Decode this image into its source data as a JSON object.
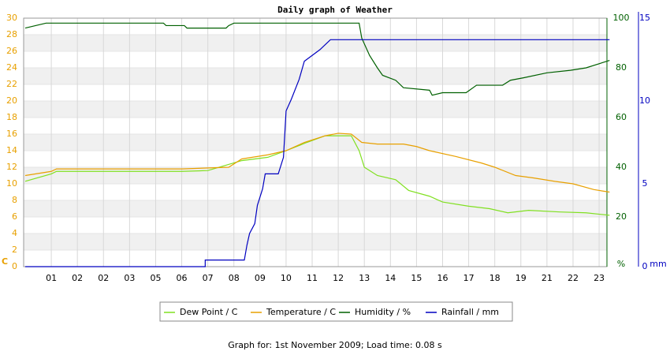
{
  "chart_data": {
    "type": "line",
    "title": "Daily graph of Weather",
    "caption": "Graph for: 1st November 2009; Load time: 0.08 s",
    "ylabel": "C",
    "y2label": "%",
    "y3label": "mm",
    "xlim": [
      -0.06,
      22.3
    ],
    "xticks": [
      {
        "value": 1,
        "label": "01"
      },
      {
        "value": 2,
        "label": "02"
      },
      {
        "value": 3,
        "label": "02"
      },
      {
        "value": 4,
        "label": "03"
      },
      {
        "value": 5,
        "label": "05"
      },
      {
        "value": 6,
        "label": "06"
      },
      {
        "value": 7,
        "label": "07"
      },
      {
        "value": 8,
        "label": "08"
      },
      {
        "value": 9,
        "label": "09"
      },
      {
        "value": 10,
        "label": "10"
      },
      {
        "value": 11,
        "label": "11"
      },
      {
        "value": 12,
        "label": "12"
      },
      {
        "value": 13,
        "label": "13"
      },
      {
        "value": 14,
        "label": "14"
      },
      {
        "value": 15,
        "label": "15"
      },
      {
        "value": 16,
        "label": "16"
      },
      {
        "value": 17,
        "label": "17"
      },
      {
        "value": 18,
        "label": "18"
      },
      {
        "value": 19,
        "label": "19"
      },
      {
        "value": 20,
        "label": "21"
      },
      {
        "value": 21,
        "label": "22"
      },
      {
        "value": 22,
        "label": "23"
      }
    ],
    "ylim": [
      0,
      30
    ],
    "yticks": [
      0,
      2,
      4,
      6,
      8,
      10,
      12,
      14,
      16,
      18,
      20,
      22,
      24,
      26,
      28,
      30
    ],
    "y2lim": [
      0,
      100
    ],
    "y2ticks": [
      20,
      40,
      60,
      80,
      100
    ],
    "y3lim": [
      0,
      15
    ],
    "y3ticks": [
      0,
      5,
      10,
      15
    ],
    "grid": true,
    "series": [
      {
        "name": "Dew Point / C",
        "color": "#80e020",
        "x": [
          0,
          1,
          1.2,
          6,
          7,
          8.3,
          9.3,
          10,
          10.8,
          11.5,
          12.5,
          12.8,
          13.0,
          13.5,
          14.2,
          14.7,
          15.5,
          16,
          17,
          17.8,
          18.5,
          19.3,
          20.5,
          21.5,
          22.4
        ],
        "values": [
          10.3,
          11.2,
          11.5,
          11.5,
          11.6,
          12.8,
          13.2,
          14,
          15,
          15.8,
          15.8,
          14,
          12,
          11,
          10.5,
          9.2,
          8.5,
          7.8,
          7.3,
          7,
          6.5,
          6.8,
          6.6,
          6.5,
          6.2
        ]
      },
      {
        "name": "Temperature / C",
        "color": "#e8a000",
        "x": [
          0,
          1,
          1.2,
          6,
          7.8,
          8.3,
          9.3,
          10,
          10.7,
          11.5,
          12,
          12.5,
          12.9,
          13.5,
          14.5,
          15,
          15.5,
          16.5,
          17.5,
          18,
          18.8,
          19.5,
          20.3,
          21,
          21.8,
          22.4
        ],
        "values": [
          11.0,
          11.5,
          11.8,
          11.8,
          12,
          13,
          13.5,
          14,
          15,
          15.8,
          16.1,
          16,
          15,
          14.8,
          14.8,
          14.5,
          14,
          13.3,
          12.5,
          12,
          11,
          10.7,
          10.3,
          10,
          9.3,
          9.0
        ]
      },
      {
        "name": "Humidity / %",
        "color": "#006000",
        "axis": "y2",
        "x": [
          0,
          0.4,
          0.8,
          5.3,
          5.4,
          6.1,
          6.2,
          7.7,
          7.8,
          8.0,
          12.8,
          12.9,
          13.2,
          13.5,
          13.7,
          14.2,
          14.5,
          15.5,
          15.6,
          16.0,
          16.9,
          17.3,
          18.3,
          18.6,
          19.1,
          20.0,
          20.9,
          21.5,
          22.1,
          22.4
        ],
        "values": [
          96,
          97,
          98,
          98,
          97,
          97,
          96,
          96,
          97,
          98,
          98,
          92,
          85,
          80,
          77,
          75,
          72,
          71,
          69,
          70,
          70,
          73,
          73,
          75,
          76,
          78,
          79,
          80,
          82,
          83
        ]
      },
      {
        "name": "Rainfall / mm",
        "color": "#0000c0",
        "axis": "y3",
        "x": [
          0,
          6.9,
          6.9,
          8.4,
          8.5,
          8.6,
          8.8,
          8.9,
          9.1,
          9.2,
          9.7,
          9.9,
          10.0,
          10.2,
          10.5,
          10.7,
          11.3,
          11.7,
          12.0,
          22.4
        ],
        "values": [
          0,
          0,
          0.4,
          0.4,
          1.3,
          2.0,
          2.6,
          3.7,
          4.7,
          5.6,
          5.6,
          6.6,
          9.4,
          10.1,
          11.3,
          12.4,
          13.1,
          13.7,
          13.7,
          13.7
        ]
      }
    ]
  }
}
